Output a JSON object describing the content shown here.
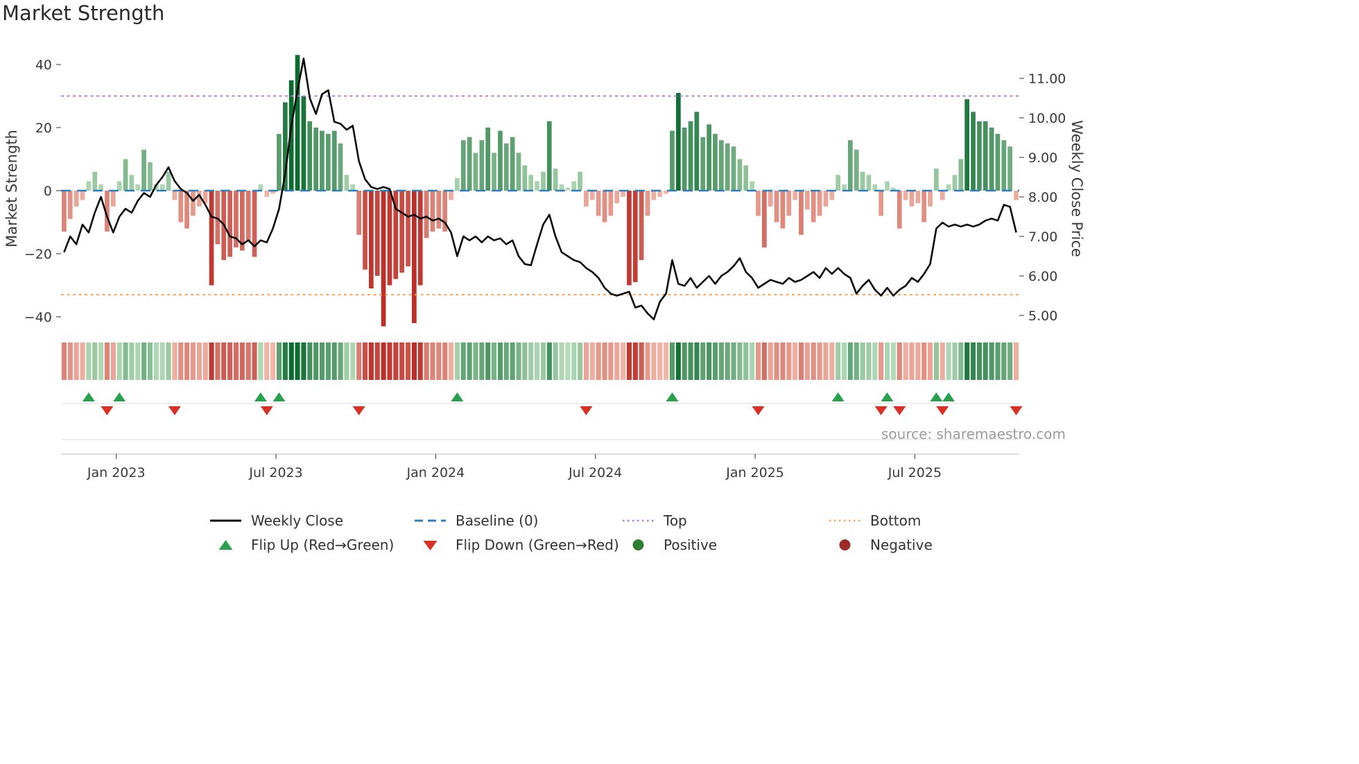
{
  "title": "Market Strength",
  "source": "source: sharemaestro.com",
  "axes": {
    "left_label": "Market Strength",
    "right_label": "Weekly Close Price",
    "left_ticks": [
      {
        "label": "40",
        "value": 40
      },
      {
        "label": "20",
        "value": 20
      },
      {
        "label": "0",
        "value": 0
      },
      {
        "label": "−20",
        "value": -20
      },
      {
        "label": "−40",
        "value": -40
      }
    ],
    "right_ticks": [
      {
        "label": "11.00",
        "value": 11
      },
      {
        "label": "10.00",
        "value": 10
      },
      {
        "label": "9.00",
        "value": 9
      },
      {
        "label": "8.00",
        "value": 8
      },
      {
        "label": "7.00",
        "value": 7
      },
      {
        "label": "6.00",
        "value": 6
      },
      {
        "label": "5.00",
        "value": 5
      }
    ],
    "x_ticks": [
      {
        "label": "Jan 2023",
        "week": 9
      },
      {
        "label": "Jul 2023",
        "week": 35
      },
      {
        "label": "Jan 2024",
        "week": 61
      },
      {
        "label": "Jul 2024",
        "week": 87
      },
      {
        "label": "Jan 2025",
        "week": 113
      },
      {
        "label": "Jul 2025",
        "week": 139
      }
    ]
  },
  "legend": {
    "weekly_close": "Weekly Close",
    "baseline": "Baseline (0)",
    "top": "Top",
    "bottom": "Bottom",
    "flip_up": "Flip Up (Red→Green)",
    "flip_down": "Flip Down (Green→Red)",
    "positive": "Positive",
    "negative": "Negative"
  },
  "colors": {
    "price_line": "#0a0a0a",
    "baseline": "#2e7eb8",
    "top": "#a87fd6",
    "bottom": "#f5a55f",
    "flip_up": "#27a14b",
    "flip_down": "#d93025",
    "positive_dot": "#2e7d32",
    "negative_dot": "#9e2a25",
    "bar_green_light": "#cdeacb",
    "bar_green_dark": "#0e6b30",
    "bar_red_light": "#f8cabb",
    "bar_red_dark": "#bc2f28"
  },
  "chart_data": {
    "type": "bar+line",
    "x_unit": "week",
    "baseline": 0,
    "top_threshold": 30,
    "bottom_threshold": -33,
    "left_ylim": [
      -46,
      47
    ],
    "right_ylim": [
      4.7,
      11.7
    ],
    "strength": [
      -13,
      -9,
      -5,
      -3,
      3,
      6,
      2,
      -13,
      -5,
      3,
      10,
      5,
      2,
      13,
      9,
      2,
      2,
      6,
      -3,
      -10,
      -12,
      -8,
      -5,
      -4,
      -30,
      -17,
      -22,
      -21,
      -18,
      -19,
      -16,
      -21,
      2,
      -2,
      -1,
      18,
      28,
      35,
      43,
      30,
      22,
      20,
      19,
      18,
      19,
      15,
      5,
      2,
      -14,
      -25,
      -31,
      -27,
      -43,
      -30,
      -28,
      -26,
      -24,
      -42,
      -30,
      -15,
      -13,
      -12,
      -13,
      -3,
      4,
      16,
      17,
      12,
      16,
      20,
      12,
      19,
      15,
      17,
      12,
      8,
      5,
      3,
      6,
      22,
      7,
      2,
      1,
      3,
      6,
      -5,
      -3,
      -8,
      -10,
      -8,
      -4,
      -2,
      -30,
      -29,
      -22,
      -8,
      -3,
      -2,
      -1,
      19,
      31,
      20,
      22,
      25,
      17,
      21,
      18,
      16,
      15,
      14,
      10,
      8,
      3,
      -8,
      -18,
      -5,
      -10,
      -12,
      -8,
      -3,
      -14,
      -6,
      -10,
      -8,
      -5,
      -3,
      5,
      2,
      16,
      13,
      6,
      5,
      2,
      -8,
      3,
      1,
      -12,
      -3,
      -5,
      -4,
      -10,
      -5,
      7,
      -3,
      2,
      5,
      10,
      29,
      25,
      22,
      22,
      20,
      18,
      16,
      14,
      -3
    ],
    "price": [
      6.6,
      7.0,
      6.8,
      7.3,
      7.1,
      7.6,
      8.0,
      7.5,
      7.1,
      7.5,
      7.7,
      7.6,
      7.9,
      8.1,
      8.0,
      8.3,
      8.5,
      8.75,
      8.4,
      8.2,
      8.1,
      7.9,
      8.05,
      7.8,
      7.5,
      7.45,
      7.3,
      7.0,
      6.95,
      6.8,
      6.9,
      6.75,
      6.9,
      6.85,
      7.2,
      7.7,
      8.6,
      9.8,
      10.7,
      11.5,
      10.5,
      10.1,
      10.6,
      10.7,
      9.9,
      9.85,
      9.7,
      9.8,
      8.9,
      8.45,
      8.25,
      8.2,
      8.25,
      8.2,
      7.7,
      7.6,
      7.5,
      7.55,
      7.45,
      7.5,
      7.4,
      7.45,
      7.35,
      7.1,
      6.5,
      7.0,
      6.9,
      7.0,
      6.85,
      7.0,
      6.9,
      6.95,
      6.8,
      6.9,
      6.5,
      6.3,
      6.27,
      6.8,
      7.3,
      7.55,
      7.0,
      6.6,
      6.5,
      6.4,
      6.35,
      6.2,
      6.1,
      5.95,
      5.7,
      5.55,
      5.5,
      5.55,
      5.6,
      5.2,
      5.25,
      5.05,
      4.9,
      5.35,
      5.55,
      6.4,
      5.8,
      5.75,
      5.95,
      5.7,
      5.85,
      6.0,
      5.8,
      6.0,
      6.1,
      6.25,
      6.45,
      6.1,
      5.95,
      5.7,
      5.8,
      5.9,
      5.85,
      5.8,
      5.95,
      5.85,
      5.9,
      6.0,
      6.1,
      5.95,
      6.2,
      6.05,
      6.2,
      6.05,
      5.95,
      5.55,
      5.75,
      5.9,
      5.65,
      5.5,
      5.7,
      5.5,
      5.65,
      5.75,
      5.95,
      5.85,
      6.05,
      6.3,
      7.2,
      7.35,
      7.25,
      7.3,
      7.25,
      7.3,
      7.25,
      7.3,
      7.4,
      7.45,
      7.4,
      7.8,
      7.75,
      7.1
    ],
    "flip_up_weeks": [
      4,
      9,
      32,
      35,
      64,
      99,
      126,
      134,
      142,
      144
    ],
    "flip_down_weeks": [
      7,
      18,
      33,
      48,
      85,
      113,
      133,
      136,
      143,
      155
    ]
  }
}
